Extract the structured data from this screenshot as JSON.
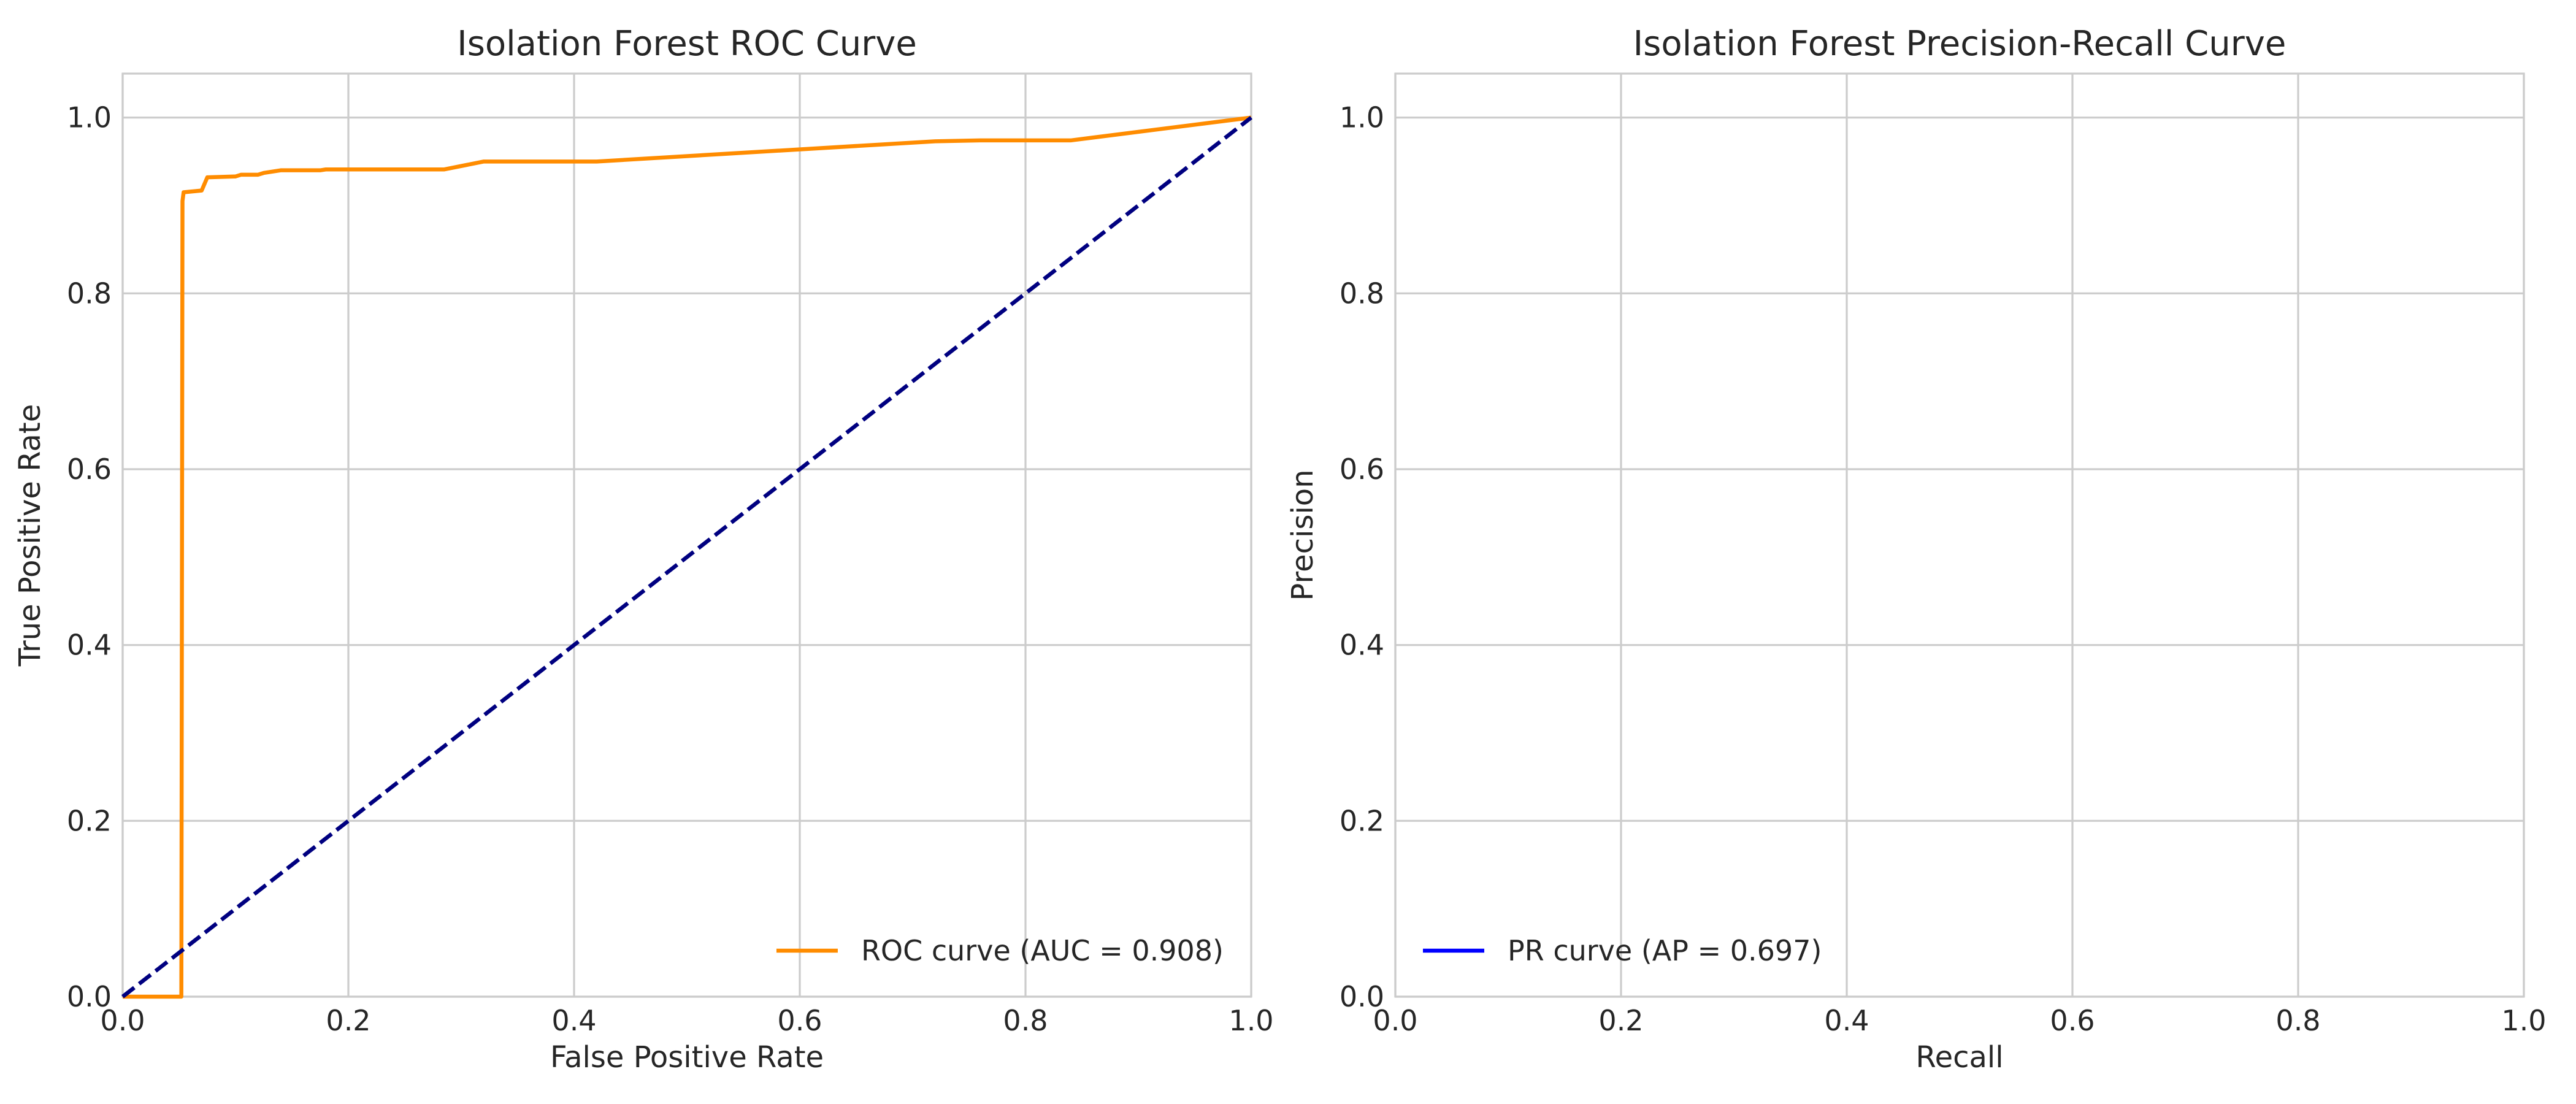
{
  "chart_data": [
    {
      "type": "line",
      "title": "Isolation Forest ROC Curve",
      "xlabel": "False Positive Rate",
      "ylabel": "True Positive Rate",
      "xlim": [
        0.0,
        1.0
      ],
      "ylim": [
        0.0,
        1.05
      ],
      "xticks": [
        "0.0",
        "0.2",
        "0.4",
        "0.6",
        "0.8",
        "1.0"
      ],
      "yticks": [
        "0.0",
        "0.2",
        "0.4",
        "0.6",
        "0.8",
        "1.0"
      ],
      "grid": true,
      "legend_position": "lower-right",
      "series": [
        {
          "name": "ROC curve (AUC = 0.908)",
          "color": "#ff8c00",
          "style": "solid",
          "x": [
            0.0,
            0.052,
            0.053,
            0.054,
            0.07,
            0.075,
            0.1,
            0.105,
            0.12,
            0.125,
            0.14,
            0.175,
            0.18,
            0.28,
            0.285,
            0.32,
            0.42,
            0.72,
            0.76,
            0.84,
            1.0
          ],
          "y": [
            0.0,
            0.0,
            0.905,
            0.915,
            0.917,
            0.932,
            0.933,
            0.935,
            0.935,
            0.937,
            0.94,
            0.94,
            0.941,
            0.941,
            0.941,
            0.95,
            0.95,
            0.973,
            0.974,
            0.974,
            1.0
          ]
        },
        {
          "name": "",
          "color": "#000080",
          "style": "dashed",
          "x": [
            0.0,
            1.0
          ],
          "y": [
            0.0,
            1.0
          ]
        }
      ]
    },
    {
      "type": "line",
      "title": "Isolation Forest Precision-Recall Curve",
      "xlabel": "Recall",
      "ylabel": "Precision",
      "xlim": [
        0.0,
        1.0
      ],
      "ylim": [
        0.0,
        1.05
      ],
      "xticks": [
        "0.0",
        "0.2",
        "0.4",
        "0.6",
        "0.8",
        "1.0"
      ],
      "yticks": [
        "0.0",
        "0.2",
        "0.4",
        "0.6",
        "0.8",
        "1.0"
      ],
      "grid": true,
      "legend_position": "lower-left",
      "series": [
        {
          "name": "PR curve (AP = 0.697)",
          "color": "#0000ff",
          "style": "solid",
          "x": [],
          "y": []
        }
      ]
    }
  ]
}
